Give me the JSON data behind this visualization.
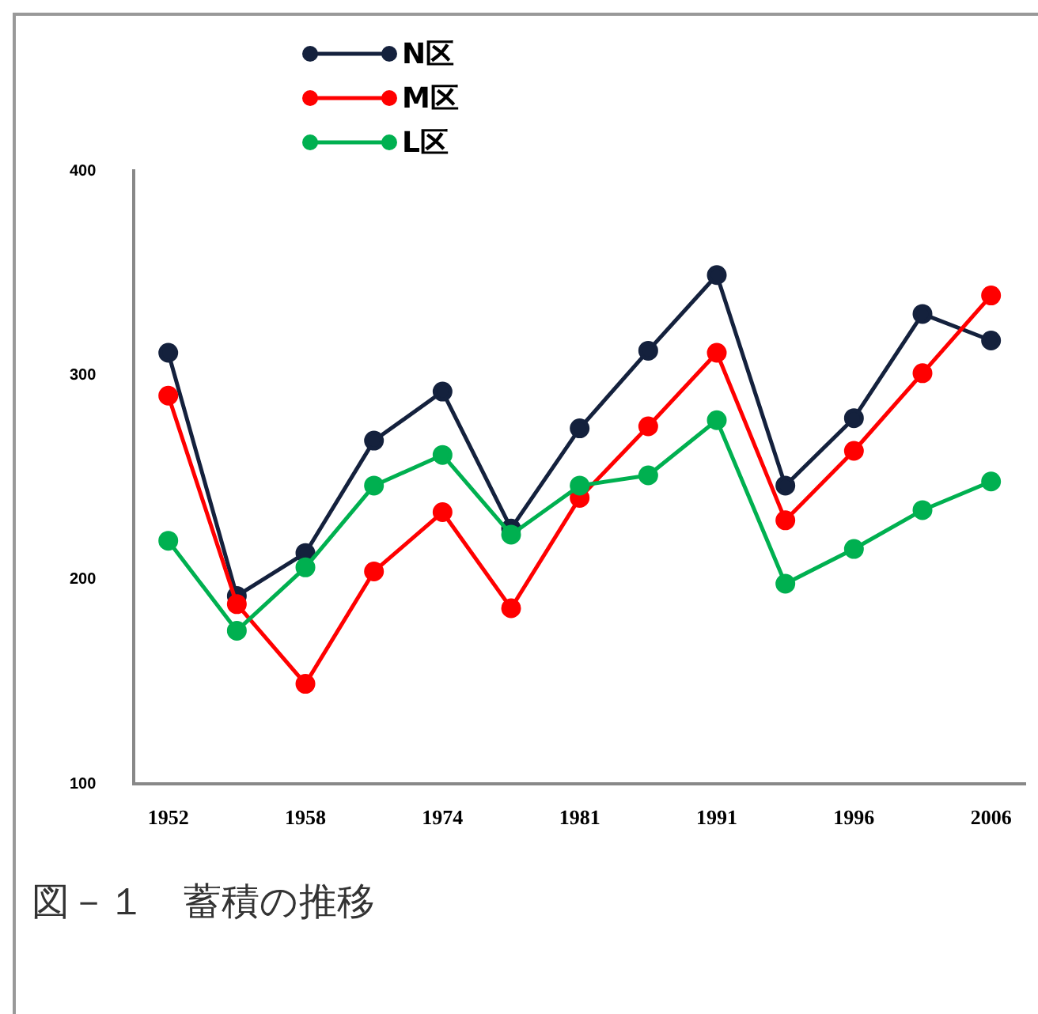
{
  "chart_data": {
    "type": "line",
    "title": "図－１　蓄積の推移",
    "categories": [
      "1952",
      null,
      "1958",
      null,
      "1974",
      null,
      "1981",
      null,
      "1991",
      null,
      "1996",
      null,
      "2006"
    ],
    "series": [
      {
        "name": "N区",
        "color": "#14213d",
        "values": [
          311,
          192,
          213,
          268,
          292,
          225,
          274,
          312,
          349,
          246,
          279,
          330,
          317
        ]
      },
      {
        "name": "M区",
        "color": "#ff0000",
        "values": [
          290,
          188,
          149,
          204,
          233,
          186,
          240,
          275,
          311,
          229,
          263,
          301,
          339
        ]
      },
      {
        "name": "L区",
        "color": "#00b050",
        "values": [
          219,
          175,
          206,
          246,
          261,
          222,
          246,
          251,
          278,
          198,
          215,
          234,
          248
        ]
      }
    ],
    "ylim": [
      100,
      400
    ],
    "yticks": [
      100,
      200,
      300,
      400
    ],
    "grid": false,
    "legend": "top left",
    "marker": "circle",
    "line_style": "solid"
  }
}
